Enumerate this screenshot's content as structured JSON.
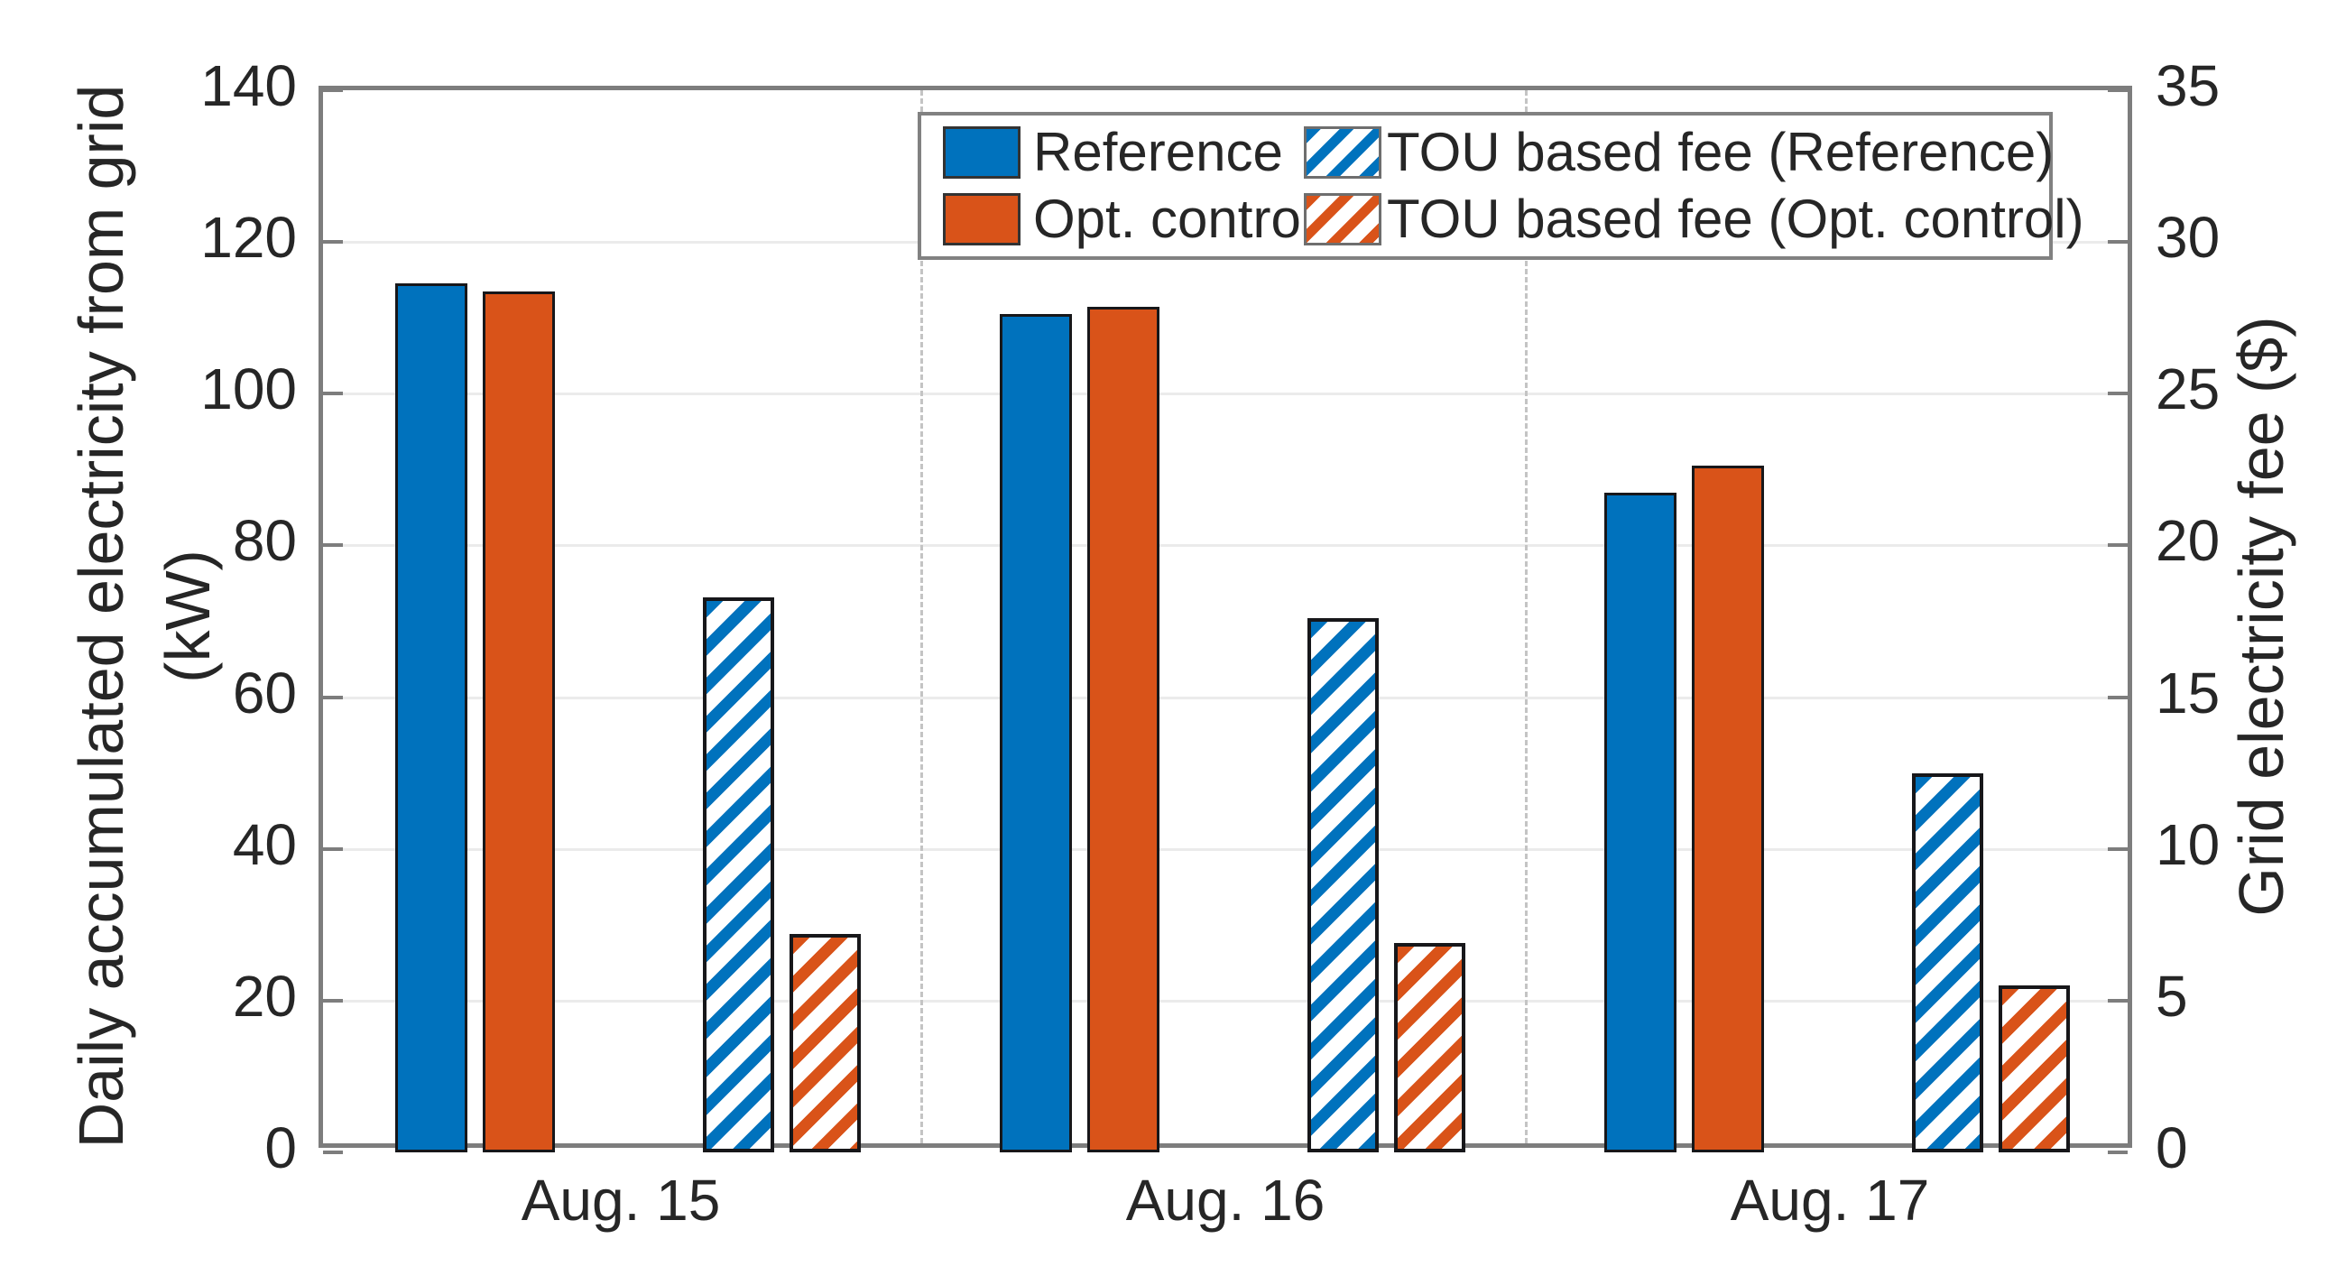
{
  "chart_data": {
    "type": "bar",
    "title": "",
    "categories": [
      "Aug. 15",
      "Aug. 16",
      "Aug. 17"
    ],
    "series": [
      {
        "name": "Reference",
        "axis": "left",
        "pattern": "solid",
        "color": "#0072BD",
        "unit": "kW",
        "values": [
          114.5,
          110.5,
          87.0
        ]
      },
      {
        "name": "Opt. control",
        "axis": "left",
        "pattern": "solid",
        "color": "#D95319",
        "unit": "kW",
        "values": [
          113.5,
          111.5,
          90.5
        ]
      },
      {
        "name": "TOU based fee (Reference)",
        "axis": "right",
        "pattern": "hatch",
        "color": "#0072BD",
        "unit": "$",
        "values": [
          18.3,
          17.6,
          12.5
        ]
      },
      {
        "name": "TOU based fee (Opt. control)",
        "axis": "right",
        "pattern": "hatch",
        "color": "#D95319",
        "unit": "$",
        "values": [
          7.2,
          6.9,
          5.5
        ]
      }
    ],
    "left_axis": {
      "label_line1": "Daily accumulated electricity from grid",
      "label_line2": "(kW)",
      "min": 0,
      "max": 140,
      "ticks": [
        0,
        20,
        40,
        60,
        80,
        100,
        120,
        140
      ]
    },
    "right_axis": {
      "label": "Grid electricity fee ($)",
      "min": 0,
      "max": 35,
      "ticks": [
        0,
        5,
        10,
        15,
        20,
        25,
        30,
        35
      ]
    },
    "legend": {
      "position": "top-center",
      "entries": [
        "Reference",
        "Opt. control",
        "TOU based fee (Reference)",
        "TOU based fee (Opt. control)"
      ]
    },
    "grid": {
      "horizontal": true,
      "vertical_group_separators": "dashed"
    }
  },
  "colors": {
    "series_blue": "#0072BD",
    "series_orange": "#D95319",
    "axis_box": "#7d7d7d",
    "gridline": "#ebebeb",
    "separator": "#c4c4c4",
    "bar_edge": "#17171a",
    "text": "#262626",
    "background": "#ffffff"
  }
}
